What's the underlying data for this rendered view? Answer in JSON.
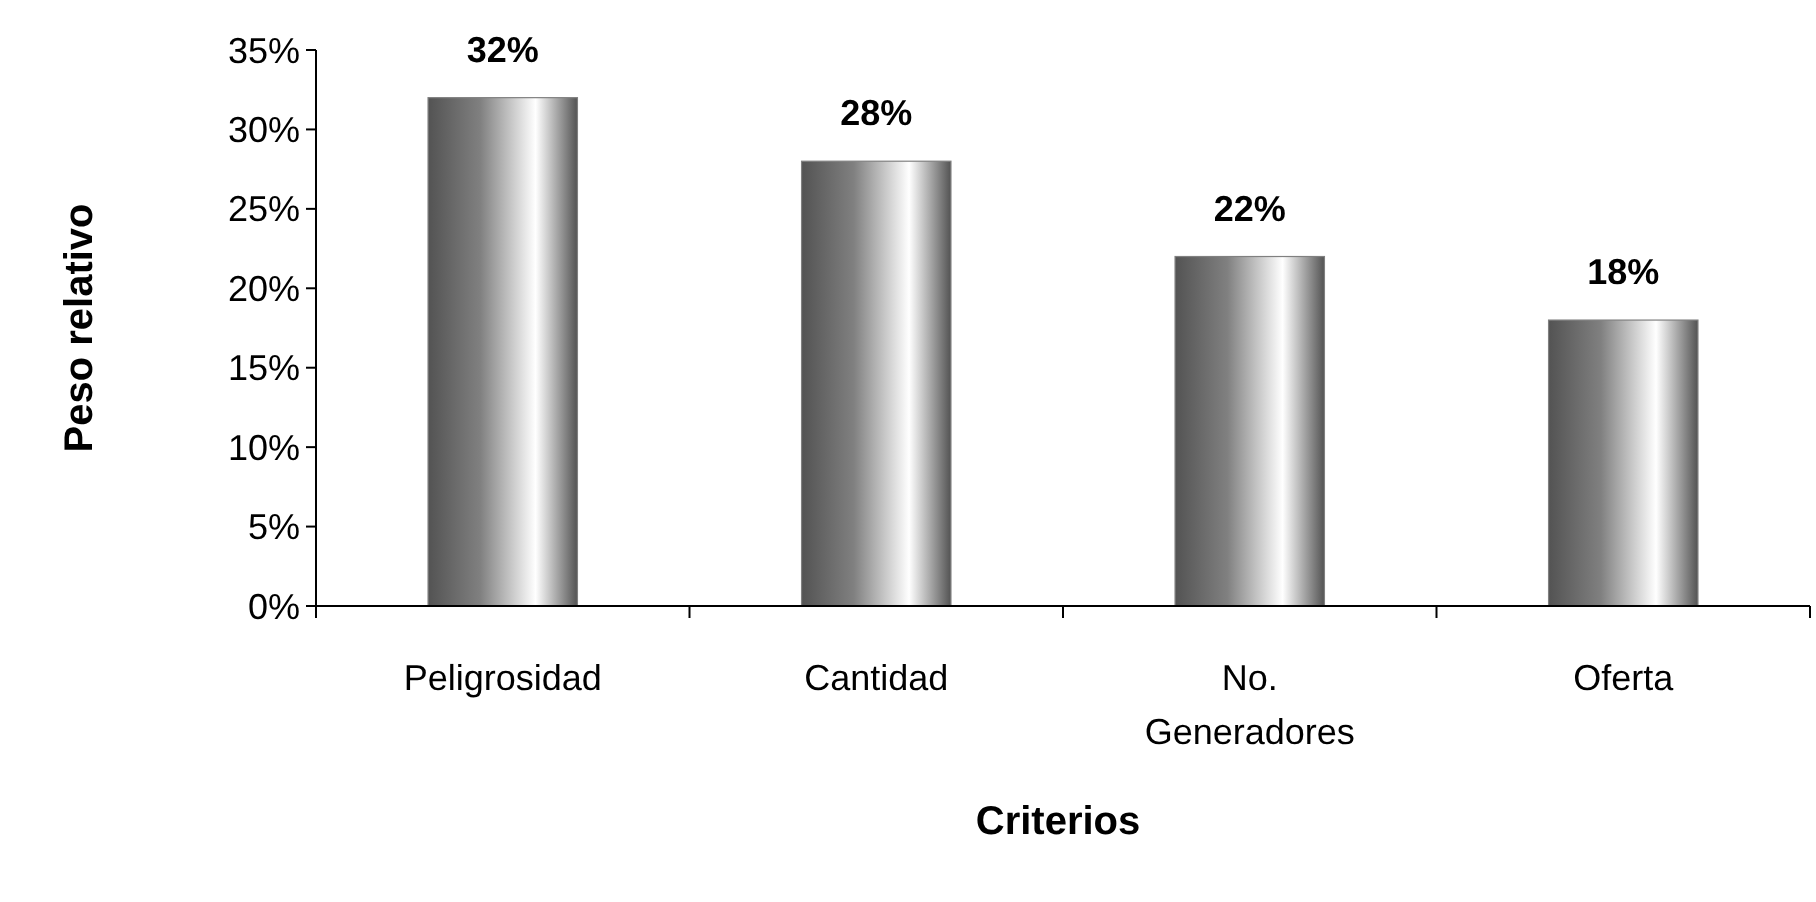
{
  "chart_data": {
    "type": "bar",
    "xlabel": "Criterios",
    "ylabel": "Peso relativo",
    "categories": [
      "Peligrosidad",
      "Cantidad",
      "No. Generadores",
      "Oferta"
    ],
    "values": [
      32,
      28,
      22,
      18
    ],
    "value_labels": [
      "32%",
      "28%",
      "22%",
      "18%"
    ],
    "color": "#808080",
    "ylim": [
      0,
      35
    ],
    "yticks": [
      {
        "value": 0,
        "label": "0%"
      },
      {
        "value": 5,
        "label": "5%"
      },
      {
        "value": 10,
        "label": "10%"
      },
      {
        "value": 15,
        "label": "15%"
      },
      {
        "value": 20,
        "label": "20%"
      },
      {
        "value": 25,
        "label": "25%"
      },
      {
        "value": 30,
        "label": "30%"
      },
      {
        "value": 35,
        "label": "35%"
      }
    ],
    "grid": false
  }
}
